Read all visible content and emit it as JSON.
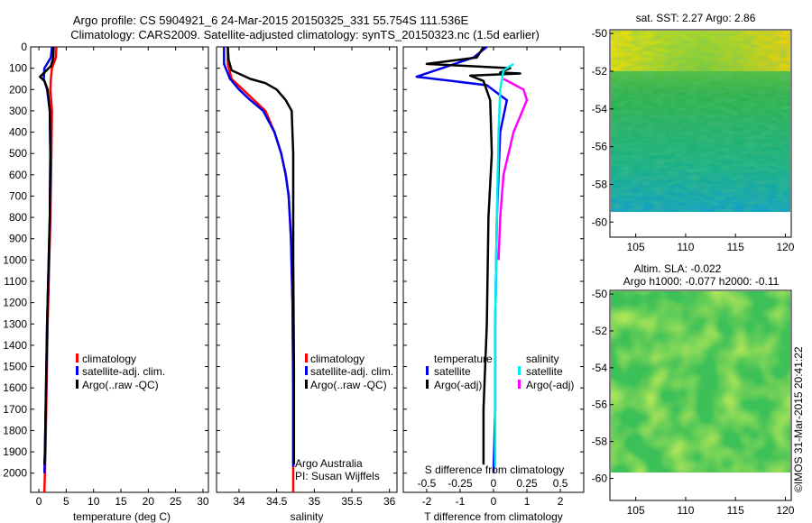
{
  "header": {
    "line1": "Argo profile: CS 5904921_6 24-Mar-2015 20150325_331 55.754S 111.536E",
    "line2": "Climatology: CARS2009. Satellite-adjusted climatology: synTS_20150323.nc (1.5d earlier)"
  },
  "colors": {
    "climatology": "#ff0000",
    "satellite": "#0000ee",
    "argo": "#000000",
    "sat_s_diff": "#00eeee",
    "argo_s_diff": "#ff00ff"
  },
  "chart_data": [
    {
      "type": "line",
      "xlabel": "temperature (deg C)",
      "xlim": [
        -1.5,
        31
      ],
      "xticks": [
        "0",
        "5",
        "10",
        "15",
        "20",
        "25",
        "30"
      ],
      "ylim": [
        2090,
        0
      ],
      "yticks": [
        "0",
        "100",
        "200",
        "300",
        "400",
        "500",
        "600",
        "700",
        "800",
        "900",
        "1000",
        "1100",
        "1200",
        "1300",
        "1400",
        "1500",
        "1600",
        "1700",
        "1800",
        "1900",
        "2000"
      ],
      "legend": [
        "climatology",
        "satellite-adj. clim.",
        "Argo(..raw -QC)"
      ],
      "series": [
        {
          "name": "climatology",
          "color": "#ff0000",
          "points": [
            [
              3.2,
              0
            ],
            [
              3.1,
              50
            ],
            [
              2.4,
              100
            ],
            [
              2.2,
              150
            ],
            [
              2.1,
              200
            ],
            [
              2.4,
              300
            ],
            [
              2.3,
              500
            ],
            [
              2.1,
              800
            ],
            [
              1.9,
              1000
            ],
            [
              1.6,
              1300
            ],
            [
              1.4,
              1600
            ],
            [
              1.2,
              1900
            ],
            [
              1.0,
              2090
            ]
          ]
        },
        {
          "name": "satellite-adj. clim.",
          "color": "#0000ee",
          "points": [
            [
              2.4,
              0
            ],
            [
              2.2,
              50
            ],
            [
              1.0,
              100
            ],
            [
              0.9,
              150
            ],
            [
              1.5,
              200
            ],
            [
              2.0,
              300
            ],
            [
              2.1,
              500
            ],
            [
              2.0,
              800
            ],
            [
              1.8,
              1000
            ],
            [
              1.5,
              1300
            ],
            [
              1.3,
              1600
            ],
            [
              1.1,
              1900
            ],
            [
              1.0,
              2000
            ]
          ]
        },
        {
          "name": "Argo(..raw -QC)",
          "color": "#000000",
          "points": [
            [
              2.7,
              0
            ],
            [
              2.6,
              55
            ],
            [
              2.2,
              90
            ],
            [
              0.2,
              140
            ],
            [
              1.0,
              160
            ],
            [
              1.6,
              200
            ],
            [
              2.0,
              300
            ],
            [
              2.1,
              500
            ],
            [
              2.0,
              800
            ],
            [
              1.8,
              1000
            ],
            [
              1.5,
              1300
            ],
            [
              1.3,
              1600
            ],
            [
              1.1,
              1900
            ],
            [
              1.0,
              1960
            ]
          ]
        }
      ]
    },
    {
      "type": "line",
      "xlabel": "salinity",
      "xlim": [
        33.7,
        36.1
      ],
      "xticks": [
        "34",
        "34.5",
        "35",
        "35.5",
        "36"
      ],
      "ylim": [
        2090,
        0
      ],
      "legend": [
        "climatology",
        "satellite-adj. clim.",
        "Argo(..raw -QC)"
      ],
      "note": [
        "Argo Australia",
        "PI: Susan Wijffels"
      ],
      "series": [
        {
          "name": "climatology",
          "color": "#ff0000",
          "points": [
            [
              33.85,
              0
            ],
            [
              33.85,
              80
            ],
            [
              33.9,
              150
            ],
            [
              34.05,
              200
            ],
            [
              34.2,
              250
            ],
            [
              34.35,
              300
            ],
            [
              34.47,
              400
            ],
            [
              34.56,
              500
            ],
            [
              34.62,
              600
            ],
            [
              34.66,
              700
            ],
            [
              34.69,
              900
            ],
            [
              34.71,
              1200
            ],
            [
              34.72,
              1600
            ],
            [
              34.72,
              2090
            ]
          ]
        },
        {
          "name": "satellite-adj. clim.",
          "color": "#0000ee",
          "points": [
            [
              33.8,
              0
            ],
            [
              33.8,
              80
            ],
            [
              33.88,
              150
            ],
            [
              34.0,
              200
            ],
            [
              34.15,
              250
            ],
            [
              34.32,
              300
            ],
            [
              34.47,
              400
            ],
            [
              34.56,
              500
            ],
            [
              34.62,
              600
            ],
            [
              34.66,
              700
            ],
            [
              34.69,
              900
            ],
            [
              34.71,
              1200
            ],
            [
              34.72,
              1600
            ],
            [
              34.72,
              1970
            ]
          ]
        },
        {
          "name": "Argo(..raw -QC)",
          "color": "#000000",
          "points": [
            [
              33.85,
              0
            ],
            [
              33.86,
              60
            ],
            [
              33.9,
              110
            ],
            [
              34.15,
              150
            ],
            [
              34.35,
              170
            ],
            [
              34.5,
              200
            ],
            [
              34.62,
              250
            ],
            [
              34.7,
              300
            ],
            [
              34.72,
              500
            ],
            [
              34.72,
              1000
            ],
            [
              34.73,
              1500
            ],
            [
              34.73,
              1960
            ]
          ]
        }
      ]
    },
    {
      "type": "line",
      "xlabel": "T difference from climatology",
      "xlabel_top": "S difference from climatology",
      "xlim": [
        -2.7,
        2.7
      ],
      "xticks": [
        "-2",
        "-1",
        "0",
        "1",
        "2"
      ],
      "xticks_top": [
        "-0.5",
        "-0.25",
        "0",
        "0.25",
        "0.5"
      ],
      "ylim": [
        2090,
        0
      ],
      "legend_headers": [
        "temperature",
        "salinity"
      ],
      "legend": [
        {
          "label": "satellite",
          "color": "#0000ee"
        },
        {
          "label": "Argo(-adj)",
          "color": "#000000"
        },
        {
          "label": "satellite",
          "color": "#00eeee"
        },
        {
          "label": "Argo(-adj)",
          "color": "#ff00ff"
        }
      ],
      "series": [
        {
          "name": "temperature satellite",
          "color": "#0000ee",
          "points": [
            [
              -0.2,
              0
            ],
            [
              -0.6,
              50
            ],
            [
              -2.3,
              140
            ],
            [
              -0.2,
              180
            ],
            [
              0.4,
              250
            ],
            [
              0.2,
              400
            ],
            [
              0.1,
              800
            ],
            [
              0.05,
              1300
            ],
            [
              0.05,
              1700
            ],
            [
              0.0,
              2000
            ]
          ]
        },
        {
          "name": "temperature Argo(-adj)",
          "color": "#000000",
          "points": [
            [
              -0.3,
              0
            ],
            [
              -0.5,
              50
            ],
            [
              -2.0,
              80
            ],
            [
              0.5,
              100
            ],
            [
              0.2,
              120
            ],
            [
              0.8,
              125
            ],
            [
              -0.7,
              135
            ],
            [
              -0.3,
              160
            ],
            [
              -0.1,
              250
            ],
            [
              -0.05,
              500
            ],
            [
              -0.15,
              800
            ],
            [
              -0.2,
              1300
            ],
            [
              -0.3,
              1700
            ],
            [
              -0.3,
              1960
            ]
          ]
        },
        {
          "name": "salinity satellite",
          "color": "#00eeee",
          "points": [
            [
              0.6,
              80
            ],
            [
              0.3,
              110
            ],
            [
              0.2,
              200
            ],
            [
              0.15,
              400
            ],
            [
              0.1,
              800
            ],
            [
              0.05,
              1300
            ],
            [
              0.05,
              1700
            ],
            [
              0.05,
              1970
            ]
          ]
        },
        {
          "name": "salinity Argo(-adj)",
          "color": "#ff00ff",
          "points": [
            [
              0.3,
              150
            ],
            [
              0.9,
              200
            ],
            [
              1.0,
              250
            ],
            [
              0.6,
              400
            ],
            [
              0.3,
              600
            ],
            [
              0.2,
              800
            ],
            [
              0.15,
              1000
            ]
          ]
        }
      ]
    },
    {
      "type": "heatmap",
      "title": "sat. SST: 2.27  Argo: 2.86",
      "xticks": [
        "105",
        "110",
        "115",
        "120"
      ],
      "yticks": [
        "-50",
        "-52",
        "-54",
        "-56",
        "-58",
        "-60"
      ],
      "xlim": [
        102.5,
        120.5
      ],
      "ylim": [
        -60.8,
        -49.8
      ]
    },
    {
      "type": "heatmap",
      "title": "Altim. SLA: -0.022",
      "subtitle": "Argo h1000: -0.077  h2000: -0.11",
      "xticks": [
        "105",
        "110",
        "115",
        "120"
      ],
      "yticks": [
        "-50",
        "-52",
        "-54",
        "-56",
        "-58",
        "-60"
      ],
      "xlim": [
        102.5,
        120.5
      ],
      "ylim": [
        -61.2,
        -49.8
      ]
    }
  ],
  "stamp": "©IMOS 31-Mar-2015 20:41:22"
}
